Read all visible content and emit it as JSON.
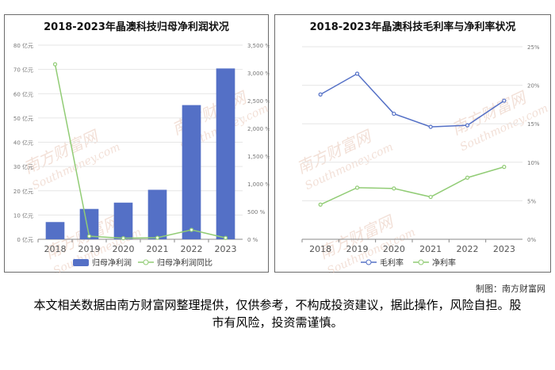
{
  "chart_data": [
    {
      "type": "bar",
      "title": "2018-2023年晶澳科技归母净利润状况",
      "categories": [
        "2018",
        "2019",
        "2020",
        "2021",
        "2022",
        "2023"
      ],
      "series": [
        {
          "name": "归母净利润",
          "type": "bar",
          "axis": "left",
          "values": [
            7.1,
            12.5,
            15.1,
            20.4,
            55.3,
            70.4
          ],
          "color": "#5470c6"
        },
        {
          "name": "归母净利润同比",
          "type": "line",
          "axis": "right",
          "values": [
            3155,
            55,
            20,
            28,
            170,
            25
          ],
          "color": "#91cc75"
        }
      ],
      "y_left": {
        "min": 0,
        "max": 80,
        "ticks": [
          "0 亿元",
          "10 亿元",
          "20 亿元",
          "30 亿元",
          "40 亿元",
          "50 亿元",
          "60 亿元",
          "70 亿元",
          "80 亿元"
        ]
      },
      "y_right": {
        "min": 0,
        "max": 3500,
        "ticks": [
          "0 %",
          "500 %",
          "1,000 %",
          "1,500 %",
          "2,000 %",
          "2,500 %",
          "3,000 %",
          "3,500 %"
        ]
      },
      "legend": "bottom"
    },
    {
      "type": "line",
      "title": "2018-2023年晶澳科技毛利率与净利率状况",
      "categories": [
        "2018",
        "2019",
        "2020",
        "2021",
        "2022",
        "2023"
      ],
      "series": [
        {
          "name": "毛利率",
          "values": [
            18.8,
            21.5,
            16.3,
            14.6,
            14.8,
            18.0
          ],
          "color": "#5470c6"
        },
        {
          "name": "净利率",
          "values": [
            4.5,
            6.7,
            6.6,
            5.5,
            8.0,
            9.4
          ],
          "color": "#91cc75"
        }
      ],
      "y_right": {
        "min": 0,
        "max": 25,
        "ticks": [
          "0%",
          "5%",
          "10%",
          "15%",
          "20%",
          "25%"
        ]
      },
      "legend": "bottom"
    }
  ],
  "watermark": {
    "text_cn": "南方财富网",
    "text_en": "Southmoney.com"
  },
  "footer": {
    "credit": "制图：南方财富网",
    "disclaimer": "本文相关数据由南方财富网整理提供，仅供参考，不构成投资建议，据此操作，风险自担。股市有风险，投资需谨慎。"
  }
}
